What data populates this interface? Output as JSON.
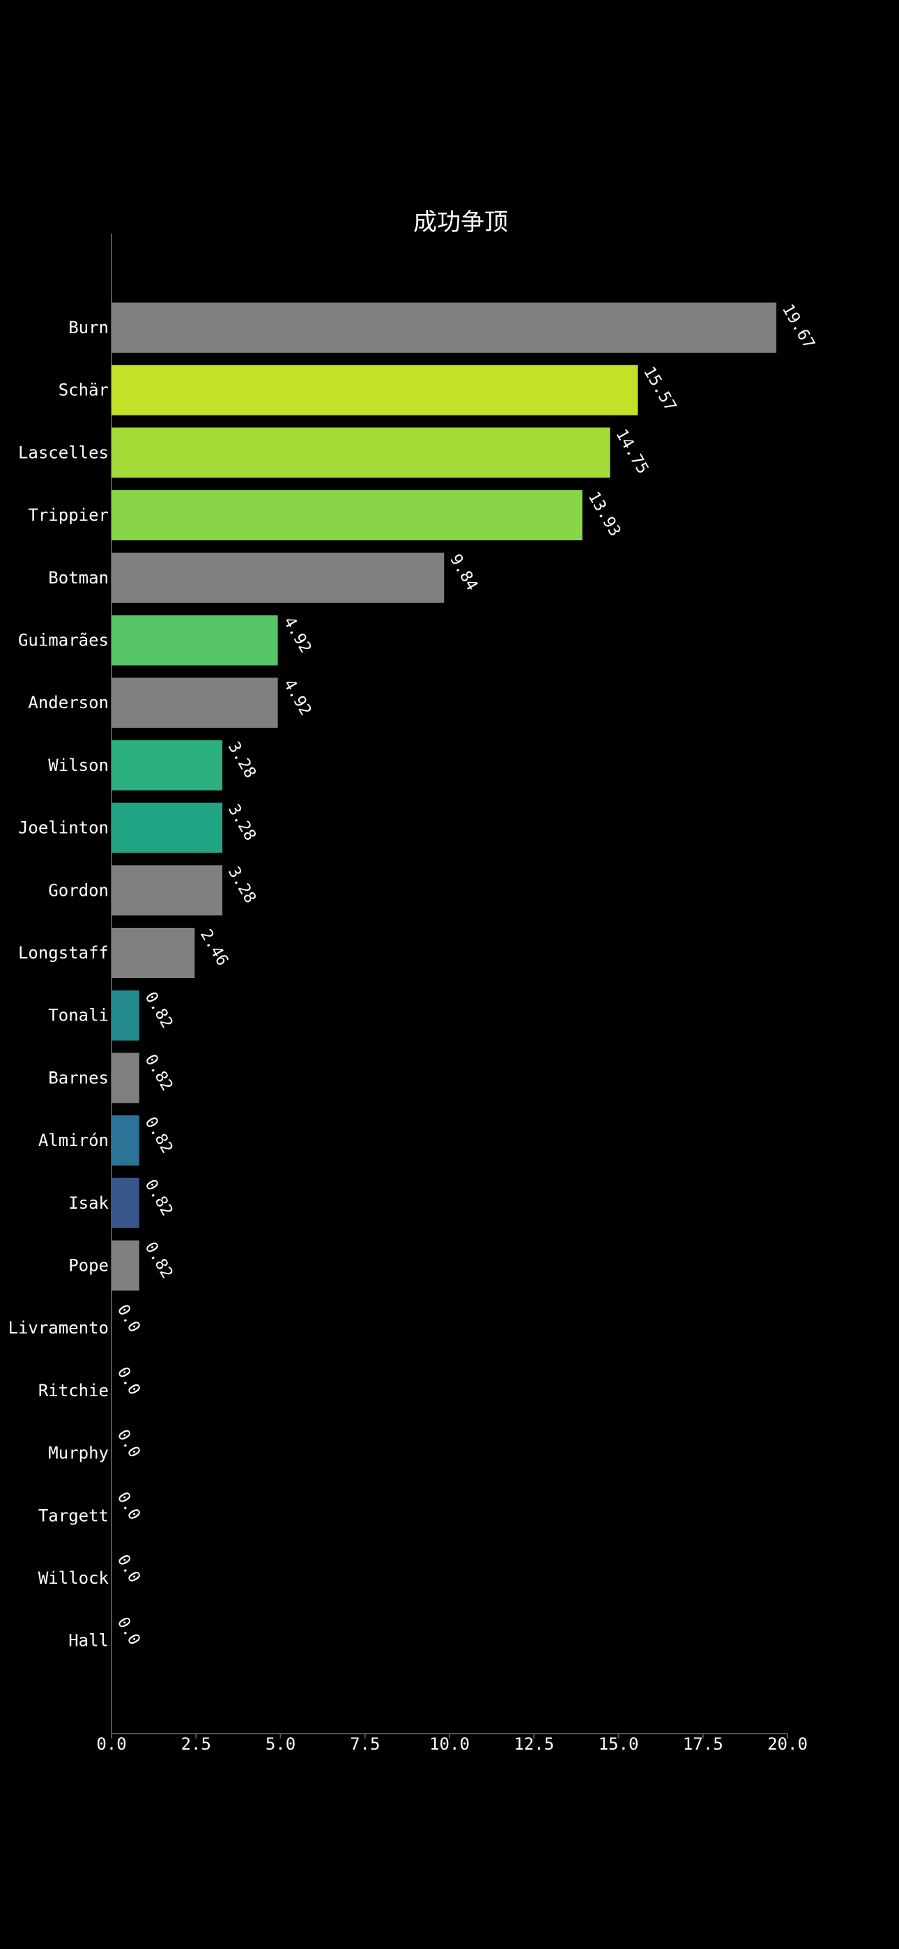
{
  "chart_data": {
    "type": "bar",
    "orientation": "horizontal",
    "title": "成功争顶",
    "xlabel": "",
    "ylabel": "",
    "xlim": [
      0,
      20
    ],
    "x_ticks": [
      "0.0",
      "2.5",
      "5.0",
      "7.5",
      "10.0",
      "12.5",
      "15.0",
      "17.5",
      "20.0"
    ],
    "x_tick_values": [
      0,
      2.5,
      5,
      7.5,
      10,
      12.5,
      15,
      17.5,
      20
    ],
    "grid": false,
    "categories": [
      "Burn",
      "Schär",
      "Lascelles",
      "Trippier",
      "Botman",
      "Guimarães",
      "Anderson",
      "Wilson",
      "Joelinton",
      "Gordon",
      "Longstaff",
      "Tonali",
      "Barnes",
      "Almirón",
      "Isak",
      "Pope",
      "Livramento",
      "Ritchie",
      "Murphy",
      "Targett",
      "Willock",
      "Hall"
    ],
    "values": [
      19.67,
      15.57,
      14.75,
      13.93,
      9.84,
      4.92,
      4.92,
      3.28,
      3.28,
      3.28,
      2.46,
      0.82,
      0.82,
      0.82,
      0.82,
      0.82,
      0.0,
      0.0,
      0.0,
      0.0,
      0.0,
      0.0
    ],
    "value_labels": [
      "19.67",
      "15.57",
      "14.75",
      "13.93",
      "9.84",
      "4.92",
      "4.92",
      "3.28",
      "3.28",
      "3.28",
      "2.46",
      "0.82",
      "0.82",
      "0.82",
      "0.82",
      "0.82",
      "0.0",
      "0.0",
      "0.0",
      "0.0",
      "0.0",
      "0.0"
    ],
    "colors": [
      "#808080",
      "#c3e128",
      "#a5db36",
      "#89d548",
      "#808080",
      "#55c568",
      "#808080",
      "#2cb17e",
      "#21a585",
      "#808080",
      "#808080",
      "#238a8d",
      "#808080",
      "#2c7398",
      "#39568c",
      "#808080",
      "#808080",
      "#808080",
      "#808080",
      "#808080",
      "#808080",
      "#808080"
    ],
    "background": "#000000",
    "text_color": "#ffffff",
    "axis_color": "#555555"
  }
}
